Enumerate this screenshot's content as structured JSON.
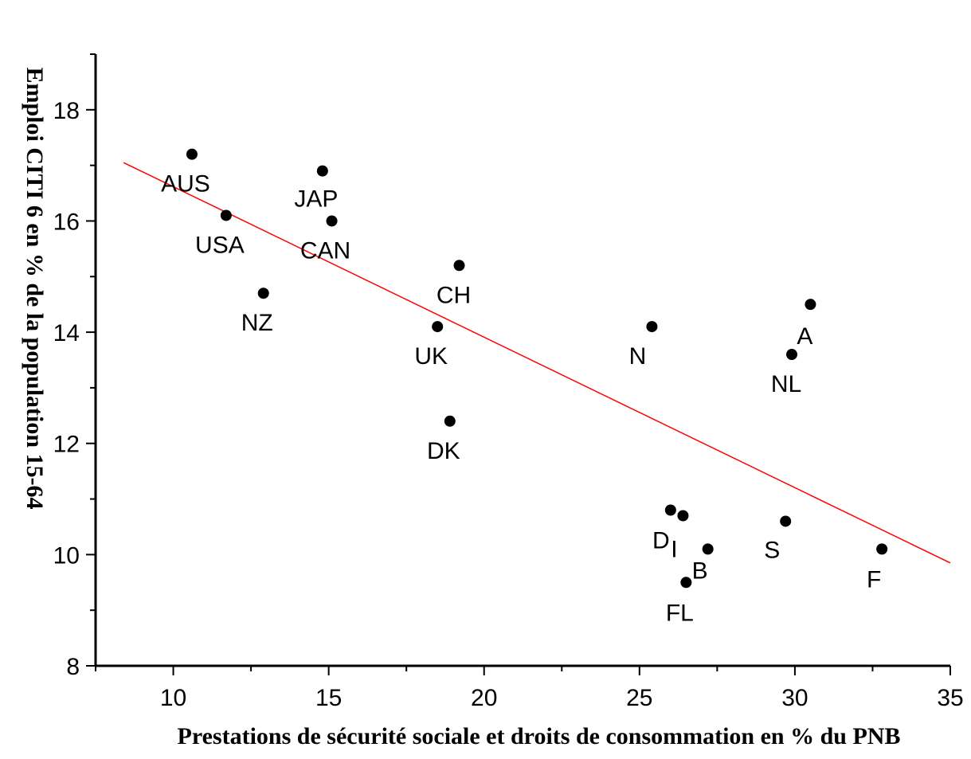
{
  "chart_data": {
    "type": "scatter",
    "xlabel": "Prestations de sécurité sociale et droits de consommation en % du PNB",
    "ylabel": "Emploi CITI 6 en % de la population 15-64",
    "xlim": [
      7.5,
      35
    ],
    "ylim": [
      8,
      19
    ],
    "x_ticks": [
      10,
      15,
      20,
      25,
      30,
      35
    ],
    "y_ticks": [
      8,
      10,
      12,
      14,
      16,
      18
    ],
    "grid": false,
    "legend": "none",
    "marker_color": "#000000",
    "trendline_color": "#ff0000",
    "points": [
      {
        "label": "AUS",
        "x": 10.6,
        "y": 17.2
      },
      {
        "label": "USA",
        "x": 11.7,
        "y": 16.1
      },
      {
        "label": "NZ",
        "x": 12.9,
        "y": 14.7
      },
      {
        "label": "JAP",
        "x": 14.8,
        "y": 16.9
      },
      {
        "label": "CAN",
        "x": 15.1,
        "y": 16.0
      },
      {
        "label": "CH",
        "x": 19.2,
        "y": 15.2
      },
      {
        "label": "UK",
        "x": 18.5,
        "y": 14.1
      },
      {
        "label": "DK",
        "x": 18.9,
        "y": 12.4
      },
      {
        "label": "N",
        "x": 25.4,
        "y": 14.1
      },
      {
        "label": "A",
        "x": 30.5,
        "y": 14.5
      },
      {
        "label": "NL",
        "x": 29.9,
        "y": 13.6
      },
      {
        "label": "D",
        "x": 26.0,
        "y": 10.8
      },
      {
        "label": "I",
        "x": 26.4,
        "y": 10.7
      },
      {
        "label": "B",
        "x": 27.2,
        "y": 10.1
      },
      {
        "label": "FL",
        "x": 26.5,
        "y": 9.5
      },
      {
        "label": "S",
        "x": 29.7,
        "y": 10.6
      },
      {
        "label": "F",
        "x": 32.8,
        "y": 10.1
      }
    ],
    "trendline": {
      "x": [
        8.4,
        35.0
      ],
      "y": [
        17.05,
        9.85
      ]
    }
  }
}
